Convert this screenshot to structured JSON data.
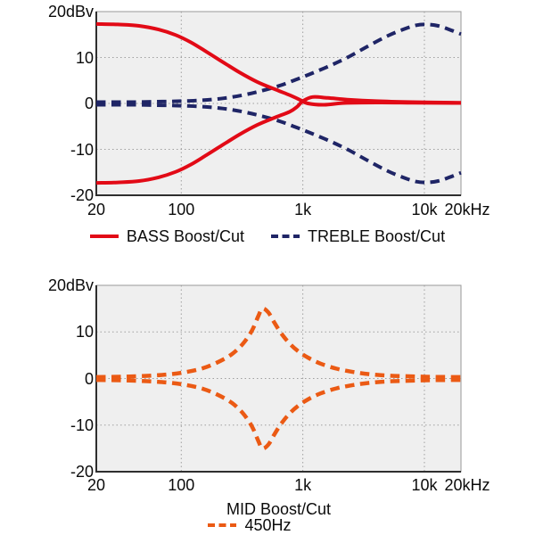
{
  "colors": {
    "red": "#e20a16",
    "navy": "#1f2566",
    "orange": "#eb5a14",
    "plot_bg": "#efefef",
    "grid": "#9f9f9f",
    "frame": "#9a9a9a",
    "axis": "#2e2e2e",
    "text": "#0b0b0b"
  },
  "chart_data": [
    {
      "type": "line",
      "x_scale": "log",
      "xlim": [
        20,
        20000
      ],
      "ylim": [
        -20,
        20
      ],
      "y_unit": "dBv",
      "grid_x": [
        100,
        1000,
        10000
      ],
      "grid_y": [
        10,
        0,
        -10
      ],
      "x_ticks": [
        {
          "f": 20,
          "label": "20"
        },
        {
          "f": 100,
          "label": "100"
        },
        {
          "f": 1000,
          "label": "1k"
        },
        {
          "f": 10000,
          "label": "10k"
        },
        {
          "f": 20000,
          "label": "20kHz"
        }
      ],
      "y_ticks": [
        {
          "v": 20,
          "label": "20dBv"
        },
        {
          "v": 10,
          "label": "10"
        },
        {
          "v": 0,
          "label": "0"
        },
        {
          "v": -10,
          "label": "-10"
        },
        {
          "v": -20,
          "label": "-20"
        }
      ],
      "series": [
        {
          "id": "treble-boost",
          "name": "TREBLE Boost",
          "color": "navy",
          "dash": "dashed",
          "width": 4,
          "points": [
            [
              20,
              0.3
            ],
            [
              40,
              0.3
            ],
            [
              70,
              0.4
            ],
            [
              100,
              0.5
            ],
            [
              150,
              0.7
            ],
            [
              220,
              1.1
            ],
            [
              320,
              1.8
            ],
            [
              450,
              2.7
            ],
            [
              650,
              3.9
            ],
            [
              900,
              5.3
            ],
            [
              1200,
              6.6
            ],
            [
              1700,
              8.3
            ],
            [
              2400,
              10.2
            ],
            [
              3400,
              12.4
            ],
            [
              4800,
              14.5
            ],
            [
              6500,
              16.0
            ],
            [
              8500,
              17.0
            ],
            [
              10500,
              17.2
            ],
            [
              13000,
              16.9
            ],
            [
              16000,
              16.1
            ],
            [
              20000,
              15.1
            ]
          ]
        },
        {
          "id": "treble-cut",
          "name": "TREBLE Cut",
          "color": "navy",
          "dash": "dashed",
          "width": 4,
          "points": [
            [
              20,
              -0.3
            ],
            [
              40,
              -0.3
            ],
            [
              70,
              -0.4
            ],
            [
              100,
              -0.5
            ],
            [
              150,
              -0.7
            ],
            [
              220,
              -1.1
            ],
            [
              320,
              -1.8
            ],
            [
              450,
              -2.7
            ],
            [
              650,
              -3.9
            ],
            [
              900,
              -5.3
            ],
            [
              1200,
              -6.6
            ],
            [
              1700,
              -8.3
            ],
            [
              2400,
              -10.2
            ],
            [
              3400,
              -12.4
            ],
            [
              4800,
              -14.5
            ],
            [
              6500,
              -16.0
            ],
            [
              8500,
              -17.0
            ],
            [
              10500,
              -17.2
            ],
            [
              13000,
              -16.9
            ],
            [
              16000,
              -16.1
            ],
            [
              20000,
              -15.1
            ]
          ]
        },
        {
          "id": "bass-boost",
          "name": "BASS Boost",
          "color": "red",
          "dash": "solid",
          "width": 4,
          "points": [
            [
              20,
              17.3
            ],
            [
              30,
              17.2
            ],
            [
              45,
              16.9
            ],
            [
              65,
              16.1
            ],
            [
              90,
              14.9
            ],
            [
              120,
              13.3
            ],
            [
              160,
              11.3
            ],
            [
              220,
              9.0
            ],
            [
              300,
              6.8
            ],
            [
              420,
              4.7
            ],
            [
              600,
              3.0
            ],
            [
              780,
              1.8
            ],
            [
              930,
              0.9
            ],
            [
              1100,
              0.0
            ],
            [
              1500,
              -0.3
            ],
            [
              2200,
              0.1
            ],
            [
              4000,
              0.2
            ],
            [
              8000,
              0.15
            ],
            [
              20000,
              0.1
            ]
          ]
        },
        {
          "id": "bass-cut",
          "name": "BASS Cut",
          "color": "red",
          "dash": "solid",
          "width": 4,
          "points": [
            [
              20,
              -17.3
            ],
            [
              30,
              -17.2
            ],
            [
              45,
              -16.9
            ],
            [
              65,
              -16.1
            ],
            [
              90,
              -14.9
            ],
            [
              120,
              -13.3
            ],
            [
              160,
              -11.3
            ],
            [
              220,
              -9.0
            ],
            [
              300,
              -6.8
            ],
            [
              420,
              -4.7
            ],
            [
              600,
              -3.0
            ],
            [
              780,
              -1.8
            ],
            [
              900,
              -0.7
            ],
            [
              1000,
              0.5
            ],
            [
              1200,
              1.4
            ],
            [
              1600,
              1.2
            ],
            [
              2400,
              0.8
            ],
            [
              4000,
              0.5
            ],
            [
              8000,
              0.3
            ],
            [
              20000,
              0.15
            ]
          ]
        }
      ],
      "legend": [
        {
          "label": "BASS Boost/Cut",
          "color": "red",
          "dash": "solid"
        },
        {
          "label": "TREBLE Boost/Cut",
          "color": "navy",
          "dash": "dashed"
        }
      ]
    },
    {
      "type": "line",
      "x_scale": "log",
      "xlim": [
        20,
        20000
      ],
      "ylim": [
        -20,
        20
      ],
      "y_unit": "dBv",
      "xlabel": "MID Boost/Cut",
      "grid_x": [
        100,
        1000,
        10000
      ],
      "grid_y": [
        10,
        0,
        -10
      ],
      "x_ticks": [
        {
          "f": 20,
          "label": "20"
        },
        {
          "f": 100,
          "label": "100"
        },
        {
          "f": 1000,
          "label": "1k"
        },
        {
          "f": 10000,
          "label": "10k"
        },
        {
          "f": 20000,
          "label": "20kHz"
        }
      ],
      "y_ticks": [
        {
          "v": 20,
          "label": "20dBv"
        },
        {
          "v": 10,
          "label": "10"
        },
        {
          "v": 0,
          "label": "0"
        },
        {
          "v": -10,
          "label": "-10"
        },
        {
          "v": -20,
          "label": "-20"
        }
      ],
      "series": [
        {
          "id": "mid-boost",
          "name": "MID Boost 450Hz",
          "color": "orange",
          "dash": "dashed",
          "width": 4.5,
          "points": [
            [
              20,
              0.3
            ],
            [
              35,
              0.4
            ],
            [
              55,
              0.6
            ],
            [
              80,
              0.9
            ],
            [
              110,
              1.4
            ],
            [
              150,
              2.2
            ],
            [
              200,
              3.5
            ],
            [
              260,
              5.2
            ],
            [
              320,
              7.4
            ],
            [
              380,
              10.2
            ],
            [
              430,
              13.4
            ],
            [
              465,
              15.0
            ],
            [
              520,
              14.2
            ],
            [
              580,
              12.1
            ],
            [
              660,
              9.8
            ],
            [
              760,
              7.8
            ],
            [
              900,
              6.0
            ],
            [
              1100,
              4.5
            ],
            [
              1400,
              3.2
            ],
            [
              1900,
              2.1
            ],
            [
              2600,
              1.4
            ],
            [
              3600,
              0.9
            ],
            [
              5200,
              0.6
            ],
            [
              8000,
              0.45
            ],
            [
              12000,
              0.35
            ],
            [
              20000,
              0.3
            ]
          ]
        },
        {
          "id": "mid-cut",
          "name": "MID Cut 450Hz",
          "color": "orange",
          "dash": "dashed",
          "width": 4.5,
          "points": [
            [
              20,
              -0.3
            ],
            [
              35,
              -0.4
            ],
            [
              55,
              -0.6
            ],
            [
              80,
              -0.9
            ],
            [
              110,
              -1.4
            ],
            [
              150,
              -2.2
            ],
            [
              200,
              -3.5
            ],
            [
              260,
              -5.2
            ],
            [
              320,
              -7.4
            ],
            [
              380,
              -10.2
            ],
            [
              430,
              -13.4
            ],
            [
              465,
              -15.0
            ],
            [
              520,
              -14.2
            ],
            [
              580,
              -12.1
            ],
            [
              660,
              -9.8
            ],
            [
              760,
              -7.8
            ],
            [
              900,
              -6.0
            ],
            [
              1100,
              -4.5
            ],
            [
              1400,
              -3.2
            ],
            [
              1900,
              -2.1
            ],
            [
              2600,
              -1.4
            ],
            [
              3600,
              -0.9
            ],
            [
              5200,
              -0.6
            ],
            [
              8000,
              -0.45
            ],
            [
              12000,
              -0.35
            ],
            [
              20000,
              -0.3
            ]
          ]
        }
      ],
      "legend": [
        {
          "label": "450Hz",
          "color": "orange",
          "dash": "dashed"
        }
      ]
    }
  ]
}
